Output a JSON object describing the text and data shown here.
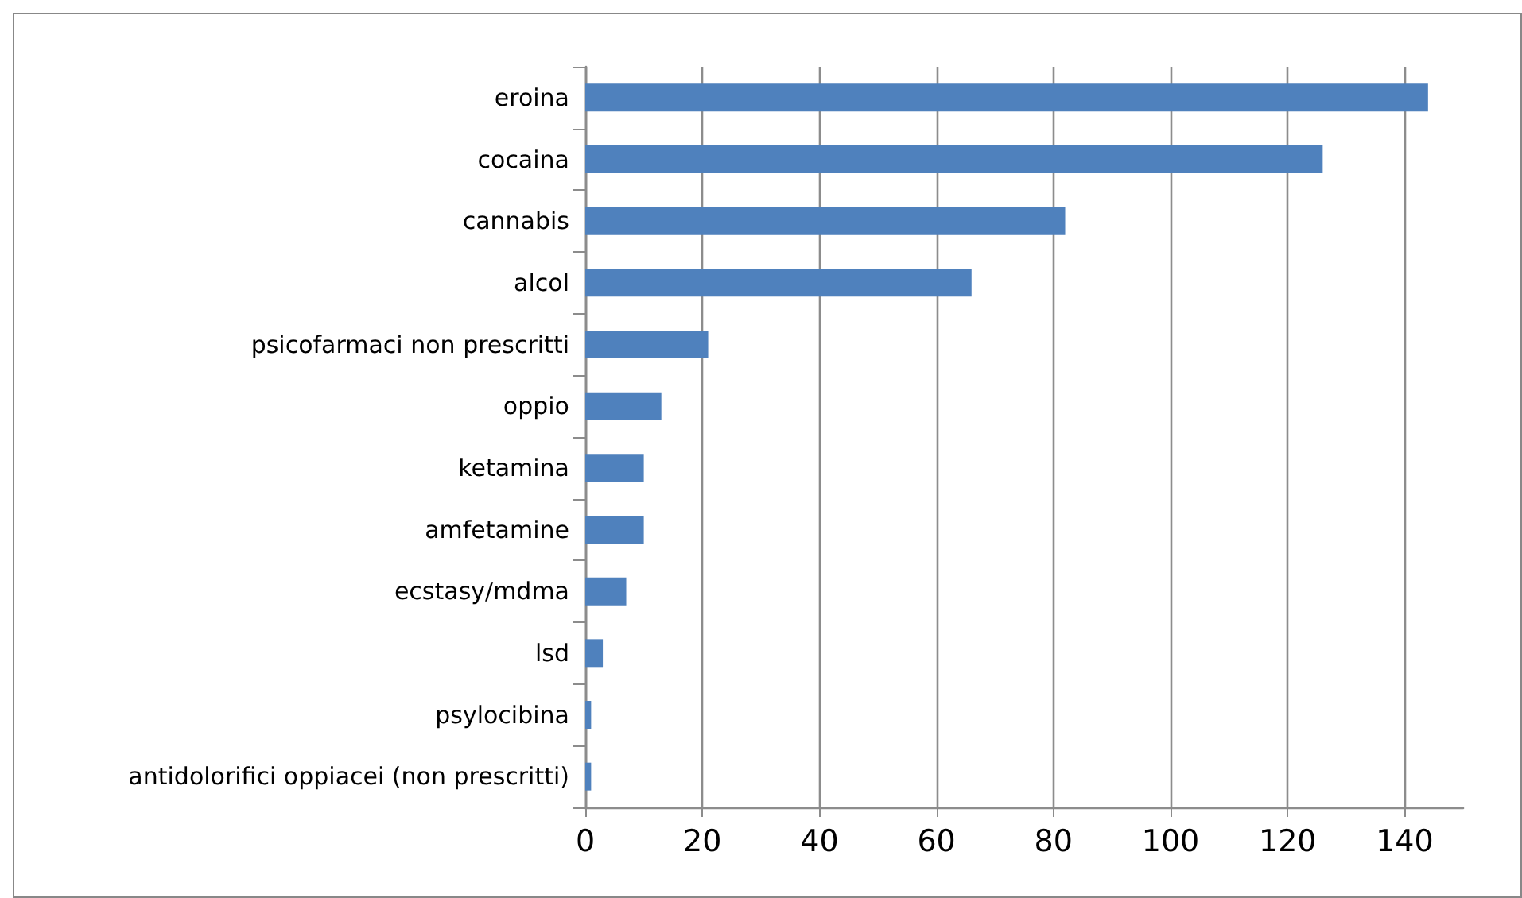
{
  "chart_data": {
    "type": "bar",
    "orientation": "horizontal",
    "categories": [
      "eroina",
      "cocaina",
      "cannabis",
      "alcol",
      "psicofarmaci non prescritti",
      "oppio",
      "ketamina",
      "amfetamine",
      "ecstasy/mdma",
      "lsd",
      "psylocibina",
      "antidolorifici oppiacei (non prescritti)"
    ],
    "values": [
      144,
      126,
      82,
      66,
      21,
      13,
      10,
      10,
      7,
      3,
      1,
      1
    ],
    "color": "#4f81bd",
    "xlim": [
      0,
      150
    ],
    "xticks": [
      0,
      20,
      40,
      60,
      80,
      100,
      120,
      140
    ],
    "grid": "x"
  }
}
